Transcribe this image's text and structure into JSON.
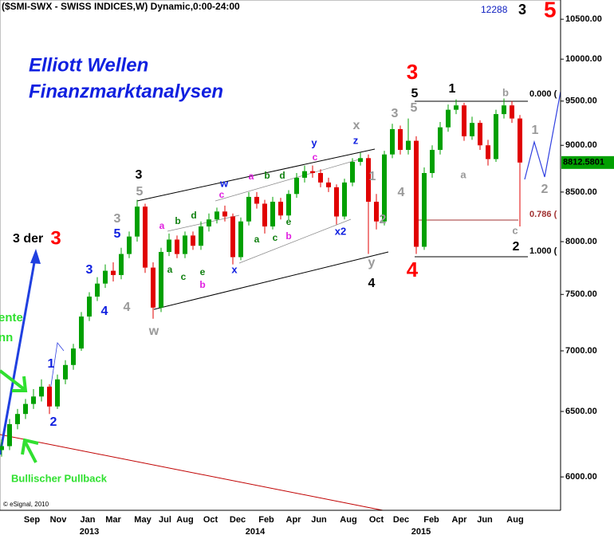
{
  "chart_data": {
    "type": "candlestick",
    "title": "($SMI-SWX - SWISS INDICES,W) Dynamic,0:00-24:00",
    "header_notes": [
      "12288",
      "3",
      "5"
    ],
    "brand": [
      "Elliott Wellen",
      "Finanzmarktanalysen"
    ],
    "side_texts": [
      "3 der",
      "Bullischer Pullback",
      "ente",
      "nn",
      "© eSignal, 2010"
    ],
    "fib_labels": [
      "0.000 (",
      "0.786 (",
      "1.000 ("
    ],
    "annotations": [
      "3",
      "5",
      "1",
      "4",
      "2",
      "5",
      "3",
      "4",
      "w",
      "x",
      "3",
      "5",
      "4",
      "2",
      "1",
      "y",
      "a",
      "b",
      "c",
      "1",
      "2",
      "3",
      "4",
      "5",
      "1",
      "2",
      "w",
      "x",
      "y",
      "z",
      "x2",
      "a",
      "b",
      "c",
      "a",
      "b",
      "c",
      "b",
      "d",
      "a",
      "c",
      "e",
      "b",
      "d",
      "a",
      "c",
      "e",
      "3",
      "4",
      "3"
    ],
    "months": [
      "Sep",
      "Nov",
      "Jan",
      "Mar",
      "May",
      "Jul",
      "Aug",
      "Oct",
      "Dec",
      "Feb",
      "Apr",
      "Jun",
      "Aug",
      "Oct",
      "Dec",
      "Feb",
      "Apr",
      "Jun",
      "Aug"
    ],
    "years": [
      "2013",
      "2014",
      "2015"
    ],
    "up_color": "#00a000",
    "down_color": "#e00000",
    "log_scale": true,
    "ylim": [
      5760,
      10750
    ],
    "yticks": [
      {
        "value": 6000,
        "label": "6000.00"
      },
      {
        "value": 6500,
        "label": "6500.00"
      },
      {
        "value": 7000,
        "label": "7000.00"
      },
      {
        "value": 7500,
        "label": "7500.00"
      },
      {
        "value": 8000,
        "label": "8000.00"
      },
      {
        "value": 8500,
        "label": "8500.00"
      },
      {
        "value": 9000,
        "label": "9000.00"
      },
      {
        "value": 9500,
        "label": "9500.00"
      },
      {
        "value": 10000,
        "label": "10000.00"
      },
      {
        "value": 10500,
        "label": "10500.00"
      }
    ],
    "open": [
      6200,
      6230,
      6400,
      6480,
      6560,
      6620,
      6700,
      6540,
      6760,
      6880,
      7020,
      7300,
      7480,
      7600,
      7720,
      7680,
      7880,
      8050,
      8350,
      7750,
      7380,
      7900,
      8020,
      7880,
      8060,
      7960,
      8150,
      8220,
      8300,
      8250,
      7850,
      8200,
      8450,
      8380,
      8150,
      8400,
      8260,
      8480,
      8650,
      8720,
      8700,
      8600,
      8550,
      8250,
      8600,
      8820,
      8860,
      8400,
      8200,
      8900,
      9180,
      8950,
      9050,
      7950,
      8700,
      8950,
      9200,
      9400,
      9450,
      9100,
      9250,
      9000,
      8850,
      9350,
      9450,
      9300
    ],
    "high": [
      6280,
      6440,
      6520,
      6600,
      6680,
      6760,
      6720,
      6800,
      6920,
      7060,
      7340,
      7520,
      7660,
      7780,
      7800,
      7940,
      8100,
      8420,
      8380,
      7800,
      7940,
      8080,
      8060,
      8100,
      8100,
      8200,
      8280,
      8340,
      8360,
      8280,
      8240,
      8500,
      8500,
      8420,
      8450,
      8440,
      8520,
      8700,
      8780,
      8780,
      8740,
      8650,
      8580,
      8640,
      8860,
      8920,
      8900,
      8480,
      8940,
      9240,
      9220,
      9300,
      9100,
      8760,
      9000,
      9260,
      9460,
      9520,
      9480,
      9320,
      9280,
      9060,
      9400,
      9530,
      9500,
      9340
    ],
    "low": [
      6150,
      6200,
      6360,
      6440,
      6520,
      6580,
      6480,
      6520,
      6720,
      6840,
      7000,
      7260,
      7440,
      7560,
      7620,
      7640,
      7840,
      8000,
      7700,
      7280,
      7340,
      7860,
      7840,
      7840,
      7920,
      7920,
      8100,
      8180,
      8200,
      7780,
      7820,
      8160,
      8330,
      8080,
      8120,
      8220,
      8220,
      8440,
      8600,
      8650,
      8550,
      8500,
      8170,
      8220,
      8560,
      8780,
      7880,
      8120,
      8160,
      8860,
      8900,
      8900,
      7880,
      7920,
      8650,
      8900,
      9150,
      9350,
      9050,
      9060,
      8950,
      8780,
      8820,
      9300,
      9250,
      8150
    ],
    "close": [
      6230,
      6400,
      6480,
      6560,
      6620,
      6700,
      6540,
      6760,
      6880,
      7020,
      7300,
      7480,
      7600,
      7720,
      7680,
      7880,
      8050,
      8350,
      7750,
      7380,
      7900,
      8020,
      7880,
      8060,
      7960,
      8150,
      8220,
      8300,
      8250,
      7850,
      8200,
      8450,
      8380,
      8150,
      8400,
      8260,
      8480,
      8650,
      8720,
      8700,
      8600,
      8550,
      8250,
      8600,
      8820,
      8860,
      8400,
      8200,
      8900,
      9180,
      8950,
      9050,
      7950,
      8700,
      8950,
      9200,
      9400,
      9450,
      9100,
      9250,
      9000,
      8850,
      9350,
      9450,
      9300,
      8812.5801
    ]
  }
}
